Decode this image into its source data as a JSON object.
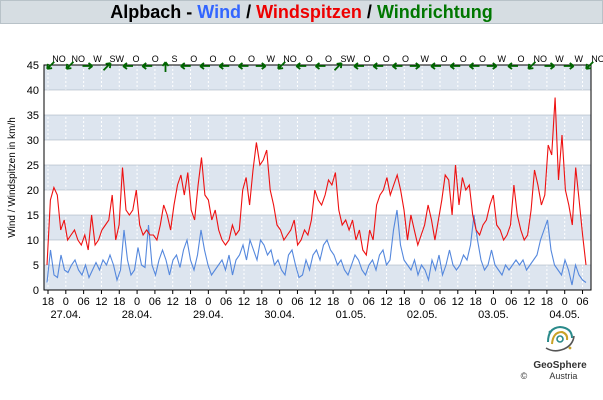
{
  "title": {
    "station": "Alpbach",
    "sep1": " - ",
    "wind": "Wind",
    "sep2": " / ",
    "gusts": "Windspitzen",
    "sep3": " / ",
    "direction": "Windrichtung",
    "wind_color": "#3366ff",
    "gusts_color": "#ee0000",
    "direction_color": "#007700"
  },
  "logo": {
    "name": "GeoSphere",
    "country": "Austria",
    "copyright": "©"
  },
  "chart_data": {
    "type": "line",
    "ylabel": "Wind / Windspitzen in km/h",
    "ylim": [
      0,
      45
    ],
    "yticks": [
      0,
      5,
      10,
      15,
      20,
      25,
      30,
      35,
      40,
      45
    ],
    "grid": true,
    "x_hour_labels": [
      "18",
      "0",
      "06",
      "12",
      "18",
      "0",
      "06",
      "12",
      "18",
      "0",
      "06",
      "12",
      "18",
      "0",
      "06",
      "12",
      "18",
      "0",
      "06",
      "12",
      "18",
      "0",
      "06",
      "12",
      "18",
      "0",
      "06",
      "12",
      "18",
      "0",
      "06"
    ],
    "x_date_labels": [
      "27.04.",
      "28.04.",
      "29.04.",
      "30.04.",
      "01.05.",
      "02.05.",
      "03.05.",
      "04.05."
    ],
    "direction_labels": [
      "NO",
      "NO",
      "W",
      "SW",
      "O",
      "O",
      "S",
      "O",
      "O",
      "O",
      "O",
      "W",
      "NO",
      "O",
      "O",
      "SW",
      "O",
      "O",
      "O",
      "W",
      "O",
      "O",
      "O",
      "W",
      "O",
      "NO",
      "W",
      "W",
      "NO"
    ],
    "series": [
      {
        "name": "Wind",
        "color": "#5588dd",
        "values": [
          1.5,
          8,
          3,
          2.5,
          7,
          4,
          3.5,
          5,
          6,
          4,
          3,
          5,
          2.5,
          4,
          5.5,
          4,
          6,
          5,
          7,
          5,
          2,
          4,
          12,
          6,
          3,
          4,
          8.5,
          5,
          4.5,
          13,
          5,
          3,
          6,
          8,
          6,
          3,
          6,
          7,
          4.5,
          8,
          10,
          6,
          4,
          7,
          12,
          8,
          5,
          3,
          4,
          5,
          6,
          4,
          7,
          3,
          6,
          7,
          9,
          6,
          10,
          8,
          6,
          10,
          9,
          7,
          8,
          5,
          6,
          4,
          3,
          7,
          8,
          5,
          2.5,
          3,
          6,
          4,
          7,
          8,
          6,
          9,
          10,
          8,
          7,
          5,
          6,
          4,
          3,
          5,
          7,
          6,
          4,
          3,
          5,
          6,
          4,
          7,
          8,
          5,
          6,
          12,
          16,
          9,
          6,
          5,
          4,
          6,
          3,
          5,
          4,
          2,
          6,
          4,
          7,
          3,
          5,
          8,
          5,
          4,
          5,
          7,
          6,
          9,
          15,
          10,
          6,
          4,
          5,
          8,
          5,
          4,
          3,
          5,
          4,
          5,
          6,
          5,
          6,
          4,
          5,
          6,
          7,
          10,
          12,
          14,
          8,
          5,
          4,
          3,
          6,
          4,
          1,
          5,
          3,
          2,
          1.5
        ]
      },
      {
        "name": "Windspitzen",
        "color": "#ee1111",
        "values": [
          5,
          18,
          20.5,
          19,
          12,
          14,
          10,
          11,
          12,
          10,
          9,
          11,
          8,
          15,
          9,
          10,
          12,
          13,
          14,
          19,
          10,
          13,
          24.5,
          16,
          15,
          16,
          20,
          13,
          11,
          12,
          11,
          11,
          10,
          13,
          17,
          15,
          12,
          17,
          21,
          23,
          19,
          23.5,
          16,
          14,
          21,
          26.5,
          19,
          18,
          14,
          16,
          12,
          10,
          9,
          10,
          13,
          11,
          12,
          20,
          22.5,
          17,
          24,
          29.5,
          25,
          26,
          28,
          20,
          17,
          13,
          12,
          10,
          11,
          12,
          14,
          9,
          10,
          12,
          11,
          14,
          20,
          18,
          17,
          19,
          22,
          21,
          23.5,
          16,
          13,
          14,
          12,
          14,
          10,
          12,
          8,
          7,
          12,
          10,
          17,
          19,
          20,
          22.5,
          19,
          21,
          23,
          20,
          16,
          10,
          15,
          12,
          9,
          11,
          13,
          17,
          14,
          10,
          14,
          18,
          23,
          22,
          15,
          25,
          17,
          22.5,
          20,
          21,
          15,
          12,
          11,
          13,
          14,
          17,
          19,
          13,
          12,
          10,
          11,
          13,
          21,
          15,
          12,
          10,
          11,
          16,
          24,
          21,
          17,
          19,
          29,
          27,
          38.5,
          22,
          31,
          20,
          17,
          13,
          24.5,
          18,
          11,
          5
        ]
      }
    ]
  }
}
